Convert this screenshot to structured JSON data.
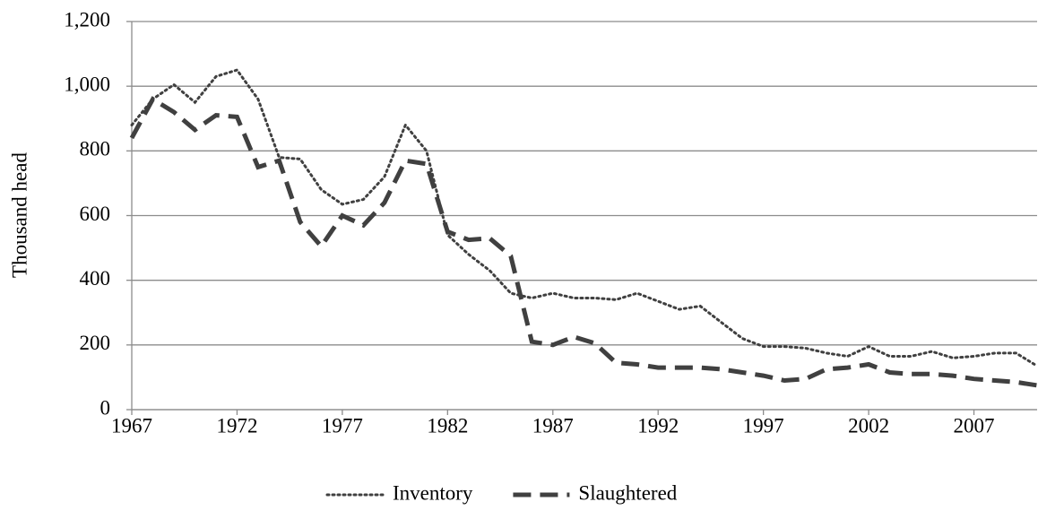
{
  "chart_data": {
    "type": "line",
    "y_label": "Thousand head",
    "x": [
      1967,
      1968,
      1969,
      1970,
      1971,
      1972,
      1973,
      1974,
      1975,
      1976,
      1977,
      1978,
      1979,
      1980,
      1981,
      1982,
      1983,
      1984,
      1985,
      1986,
      1987,
      1988,
      1989,
      1990,
      1991,
      1992,
      1993,
      1994,
      1995,
      1996,
      1997,
      1998,
      1999,
      2000,
      2001,
      2002,
      2003,
      2004,
      2005,
      2006,
      2007,
      2008,
      2009,
      2010
    ],
    "series": [
      {
        "name": "Inventory",
        "color": "#404040",
        "dash": "dotted",
        "values": [
          880,
          960,
          1005,
          950,
          1030,
          1050,
          960,
          780,
          775,
          680,
          635,
          650,
          720,
          880,
          800,
          540,
          480,
          430,
          360,
          345,
          360,
          345,
          345,
          340,
          360,
          335,
          310,
          320,
          270,
          220,
          195,
          195,
          190,
          175,
          165,
          195,
          165,
          165,
          180,
          160,
          165,
          175,
          175,
          135
        ]
      },
      {
        "name": "Slaughtered",
        "color": "#404040",
        "dash": "dashed",
        "values": [
          840,
          960,
          920,
          865,
          910,
          905,
          750,
          770,
          580,
          505,
          600,
          570,
          640,
          770,
          760,
          550,
          525,
          530,
          475,
          210,
          200,
          225,
          205,
          145,
          140,
          130,
          130,
          130,
          125,
          115,
          105,
          90,
          95,
          125,
          130,
          140,
          115,
          110,
          110,
          105,
          95,
          90,
          85,
          75
        ]
      }
    ],
    "xlim": [
      1967,
      2010
    ],
    "xticks": [
      1967,
      1972,
      1977,
      1982,
      1987,
      1992,
      1997,
      2002,
      2007
    ],
    "ylim": [
      0,
      1200
    ],
    "yticks": [
      0,
      200,
      400,
      600,
      800,
      {
        "value": 1000,
        "label": "1,000"
      },
      {
        "value": 1200,
        "label": "1,200"
      }
    ],
    "grid": true,
    "legend": "bottom"
  }
}
